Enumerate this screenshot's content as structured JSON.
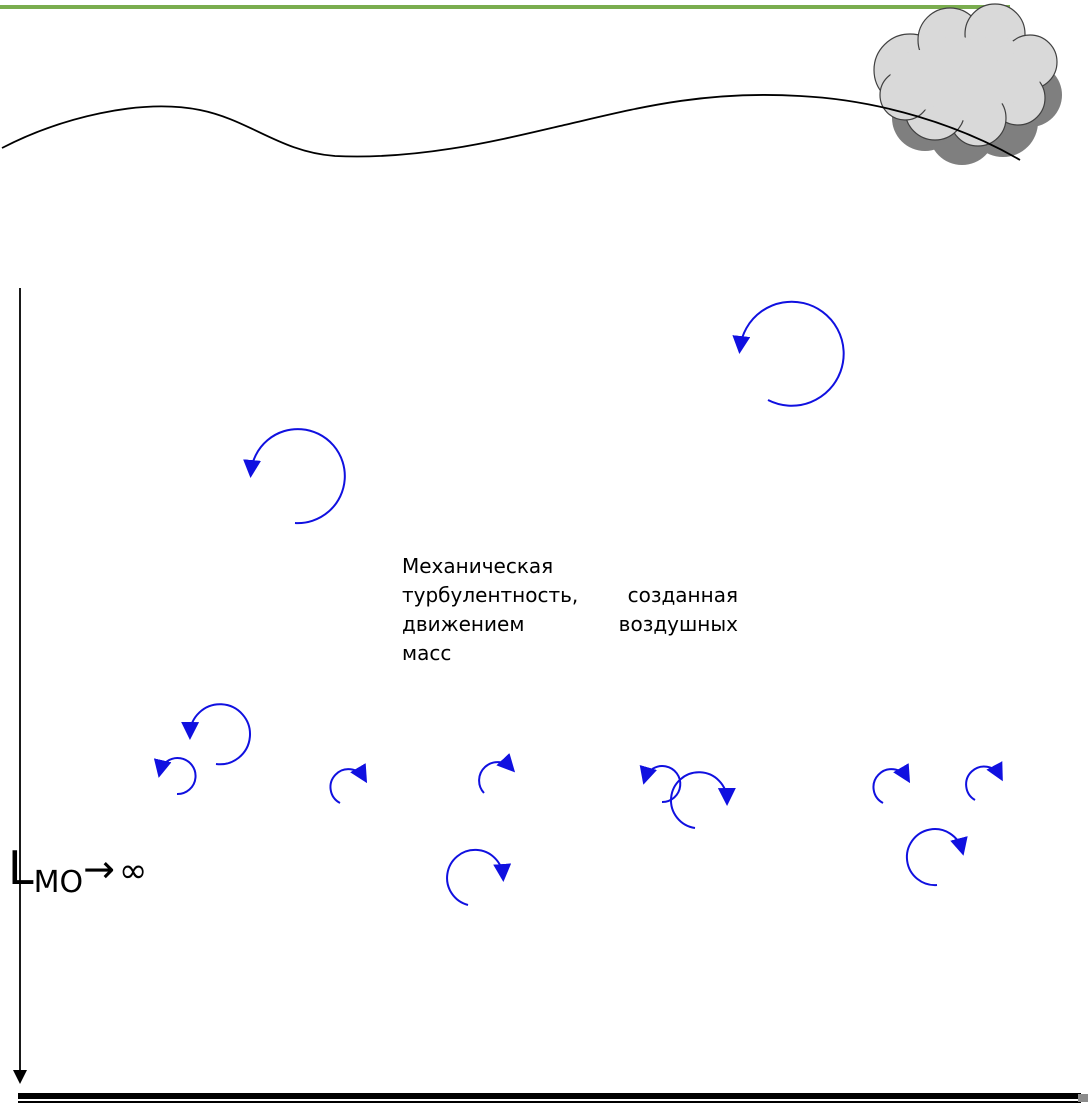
{
  "diagram": {
    "caption": {
      "lines": [
        "Механическая",
        "турбулентность, созданная",
        "движением воздушных",
        "масс"
      ]
    },
    "scale_label": {
      "letter": "L",
      "subscript": "МО",
      "arrow": "→",
      "value": "∞"
    },
    "colors": {
      "frame_top": "#7aad4f",
      "eddy": "#1010e0",
      "line": "#000000",
      "cloud_fill": "#d9d9d9",
      "cloud_shadow": "#7f7f7f",
      "ground_shadow": "#8c8c8c"
    }
  }
}
